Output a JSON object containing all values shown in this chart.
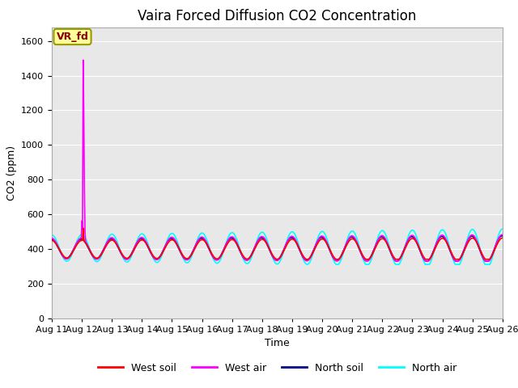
{
  "title": "Vaira Forced Diffusion CO2 Concentration",
  "xlabel": "Time",
  "ylabel": "CO2 (ppm)",
  "ylim": [
    0,
    1680
  ],
  "yticks": [
    0,
    200,
    400,
    600,
    800,
    1000,
    1200,
    1400,
    1600
  ],
  "legend_label": "VR_fd",
  "line_colors": {
    "west_soil": "#ff0000",
    "west_air": "#ff00ff",
    "north_soil": "#00008b",
    "north_air": "#00ffff"
  },
  "n_days": 15,
  "pts_per_day": 48,
  "spike_value": 1490,
  "background_color": "#e8e8e8",
  "grid_color": "#ffffff",
  "tick_label_fontsize": 8,
  "title_fontsize": 12,
  "axis_label_fontsize": 9,
  "legend_fontsize": 9,
  "vr_fd_fontsize": 9
}
